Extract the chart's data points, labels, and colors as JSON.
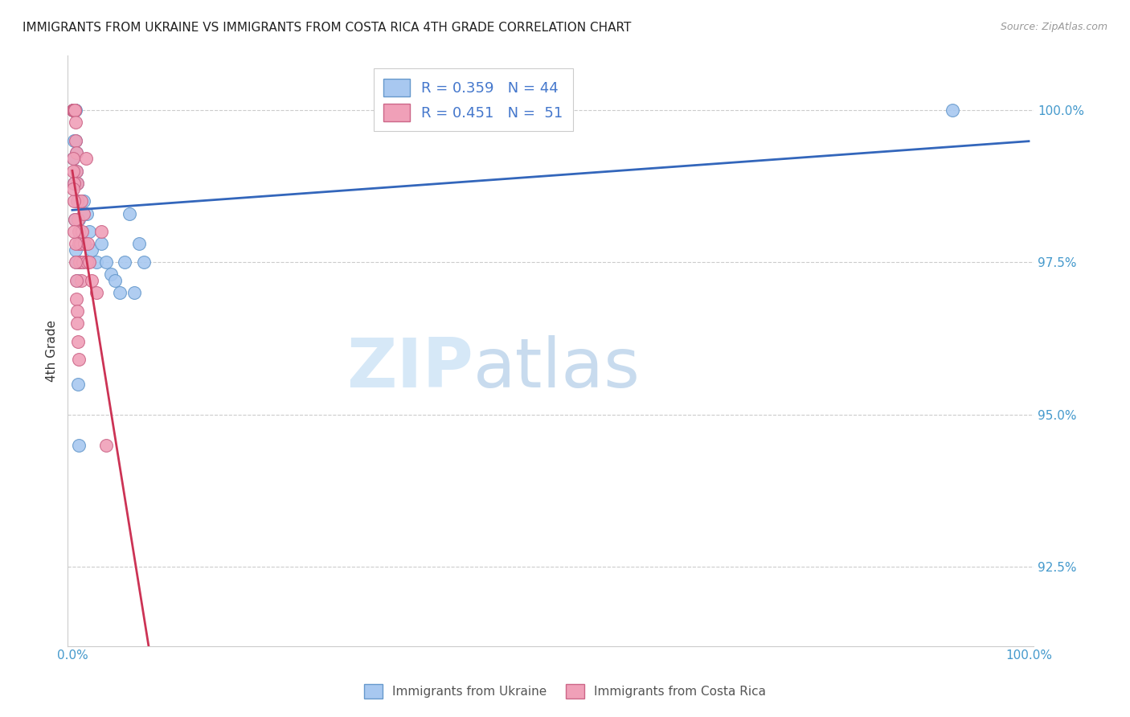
{
  "title": "IMMIGRANTS FROM UKRAINE VS IMMIGRANTS FROM COSTA RICA 4TH GRADE CORRELATION CHART",
  "source": "Source: ZipAtlas.com",
  "ylabel_left": "4th Grade",
  "ukraine_color": "#a8c8f0",
  "ukraine_edge_color": "#6699cc",
  "ukraine_line_color": "#3366bb",
  "costa_rica_color": "#f0a0b8",
  "costa_rica_edge_color": "#cc6688",
  "costa_rica_line_color": "#cc3355",
  "ukraine_R": 0.359,
  "ukraine_N": 44,
  "costa_rica_R": 0.451,
  "costa_rica_N": 51,
  "background_color": "#ffffff",
  "grid_color": "#cccccc",
  "ukraine_x": [
    0.05,
    0.08,
    0.1,
    0.12,
    0.15,
    0.18,
    0.2,
    0.22,
    0.25,
    0.3,
    0.35,
    0.4,
    0.45,
    0.5,
    0.6,
    0.7,
    0.8,
    0.9,
    1.0,
    1.2,
    1.5,
    1.8,
    2.0,
    2.5,
    3.0,
    3.5,
    4.0,
    4.5,
    5.0,
    5.5,
    6.0,
    6.5,
    7.0,
    7.5,
    0.1,
    0.15,
    0.2,
    0.25,
    0.3,
    0.4,
    0.5,
    0.6,
    0.7,
    92.0
  ],
  "ukraine_y": [
    100.0,
    100.0,
    100.0,
    100.0,
    100.0,
    100.0,
    100.0,
    100.0,
    100.0,
    100.0,
    99.5,
    99.3,
    99.0,
    98.8,
    98.5,
    98.2,
    97.9,
    97.8,
    97.5,
    98.5,
    98.3,
    98.0,
    97.7,
    97.5,
    97.8,
    97.5,
    97.3,
    97.2,
    97.0,
    97.5,
    98.3,
    97.0,
    97.8,
    97.5,
    99.2,
    99.5,
    98.8,
    98.2,
    97.7,
    97.5,
    97.2,
    95.5,
    94.5,
    100.0
  ],
  "costa_rica_x": [
    0.05,
    0.08,
    0.1,
    0.12,
    0.15,
    0.18,
    0.2,
    0.22,
    0.25,
    0.28,
    0.3,
    0.35,
    0.4,
    0.45,
    0.5,
    0.55,
    0.6,
    0.65,
    0.7,
    0.75,
    0.8,
    0.85,
    0.9,
    0.95,
    1.0,
    1.1,
    1.2,
    1.3,
    1.4,
    1.5,
    1.6,
    1.8,
    2.0,
    2.5,
    3.0,
    0.1,
    0.15,
    0.2,
    0.25,
    0.3,
    0.35,
    0.4,
    0.45,
    0.5,
    0.55,
    0.6,
    0.65,
    0.08,
    0.12,
    0.18,
    3.5
  ],
  "costa_rica_y": [
    100.0,
    100.0,
    100.0,
    100.0,
    100.0,
    100.0,
    100.0,
    100.0,
    100.0,
    100.0,
    99.8,
    99.5,
    99.3,
    99.0,
    98.8,
    98.5,
    98.2,
    98.0,
    97.8,
    97.5,
    97.5,
    97.8,
    98.5,
    97.2,
    98.0,
    97.5,
    98.3,
    97.8,
    99.2,
    97.5,
    97.8,
    97.5,
    97.2,
    97.0,
    98.0,
    99.0,
    98.8,
    98.5,
    98.2,
    97.8,
    97.5,
    97.2,
    96.9,
    96.7,
    96.5,
    96.2,
    95.9,
    99.2,
    98.7,
    98.0,
    94.5
  ]
}
